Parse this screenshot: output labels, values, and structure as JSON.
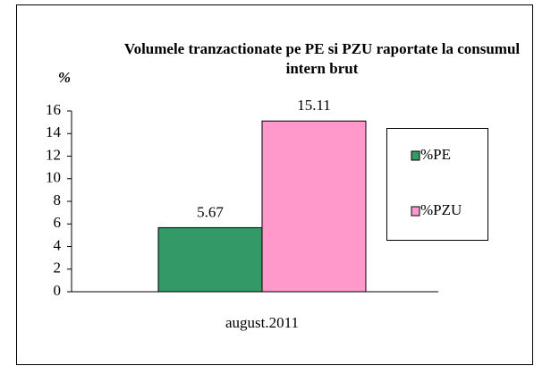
{
  "chart_data": {
    "type": "bar",
    "title": "Volumele tranzactionate pe PE si PZU raportate la consumul intern brut",
    "y_label": "%",
    "categories": [
      "august.2011"
    ],
    "series": [
      {
        "name": "%PE",
        "color": "#339966",
        "values": [
          5.67
        ]
      },
      {
        "name": "%PZU",
        "color": "#ff99cc",
        "values": [
          15.11
        ]
      }
    ],
    "ylim": [
      0,
      16
    ],
    "yticks": [
      0,
      2,
      4,
      6,
      8,
      10,
      12,
      14,
      16
    ],
    "legend": "right"
  }
}
